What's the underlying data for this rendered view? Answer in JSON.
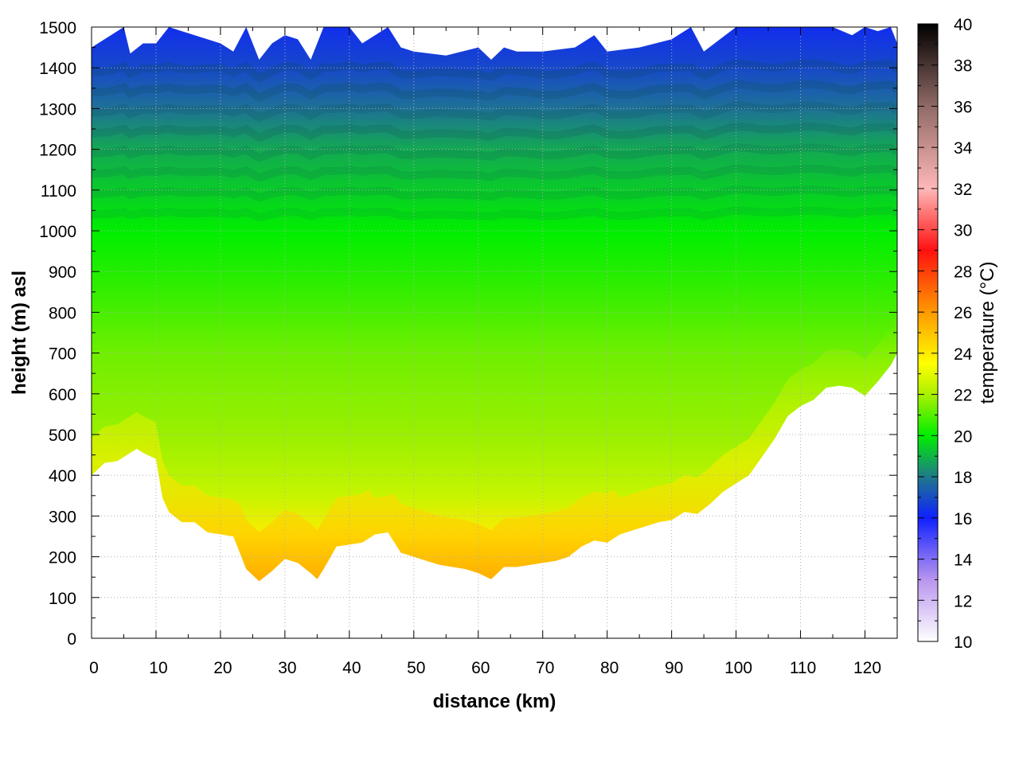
{
  "chart_data": {
    "type": "heatmap",
    "title": "",
    "xlabel": "distance (km)",
    "ylabel": "height (m) asl",
    "colorbar_label": "temperature (°C)",
    "xlim": [
      0,
      125
    ],
    "ylim": [
      0,
      1500
    ],
    "clim": [
      10,
      40
    ],
    "grid": true,
    "x_ticks": [
      0,
      10,
      20,
      30,
      40,
      50,
      60,
      70,
      80,
      90,
      100,
      110,
      120
    ],
    "y_ticks": [
      0,
      100,
      200,
      300,
      400,
      500,
      600,
      700,
      800,
      900,
      1000,
      1100,
      1200,
      1300,
      1400,
      1500
    ],
    "colorbar_ticks": [
      10,
      12,
      14,
      16,
      18,
      20,
      22,
      24,
      26,
      28,
      30,
      32,
      34,
      36,
      38,
      40
    ],
    "colormap": [
      {
        "value": 10,
        "color": "#ffffff"
      },
      {
        "value": 13,
        "color": "#b995ee"
      },
      {
        "value": 16,
        "color": "#1020ff"
      },
      {
        "value": 18,
        "color": "#1f7a8a"
      },
      {
        "value": 20,
        "color": "#00ee00"
      },
      {
        "value": 22,
        "color": "#aaf000"
      },
      {
        "value": 23.5,
        "color": "#ffff00"
      },
      {
        "value": 26,
        "color": "#ff9900"
      },
      {
        "value": 29,
        "color": "#ff1010"
      },
      {
        "value": 32,
        "color": "#ffb8b8"
      },
      {
        "value": 36,
        "color": "#906a66"
      },
      {
        "value": 40,
        "color": "#000000"
      }
    ],
    "terrain_profile": {
      "x": [
        0,
        2,
        4,
        6,
        7,
        8,
        10,
        11,
        12,
        14,
        16,
        18,
        20,
        22,
        24,
        26,
        28,
        30,
        32,
        34,
        35,
        36,
        38,
        40,
        42,
        44,
        46,
        48,
        50,
        52,
        54,
        56,
        58,
        60,
        62,
        64,
        66,
        68,
        70,
        72,
        74,
        76,
        78,
        80,
        82,
        84,
        86,
        88,
        90,
        92,
        94,
        96,
        98,
        100,
        102,
        104,
        106,
        108,
        110,
        112,
        114,
        116,
        118,
        120,
        122,
        124,
        125
      ],
      "y": [
        400,
        430,
        435,
        455,
        465,
        455,
        440,
        345,
        310,
        285,
        285,
        260,
        255,
        250,
        170,
        140,
        165,
        195,
        185,
        160,
        145,
        170,
        225,
        230,
        235,
        255,
        260,
        210,
        200,
        190,
        180,
        175,
        170,
        160,
        145,
        175,
        175,
        180,
        185,
        190,
        200,
        225,
        240,
        235,
        255,
        265,
        275,
        285,
        290,
        310,
        305,
        330,
        360,
        380,
        400,
        445,
        490,
        545,
        570,
        585,
        615,
        620,
        615,
        595,
        630,
        670,
        700
      ]
    },
    "top_boundary": {
      "x": [
        0,
        2,
        4,
        5,
        6,
        8,
        10,
        12,
        14,
        16,
        18,
        20,
        22,
        24,
        26,
        28,
        30,
        32,
        34,
        36,
        38,
        40,
        42,
        44,
        46,
        48,
        50,
        55,
        60,
        62,
        64,
        66,
        70,
        75,
        78,
        80,
        85,
        90,
        93,
        95,
        100,
        105,
        110,
        115,
        118,
        120,
        122,
        124,
        125
      ],
      "y": [
        1450,
        1470,
        1490,
        1500,
        1435,
        1460,
        1460,
        1500,
        1490,
        1480,
        1470,
        1460,
        1440,
        1500,
        1420,
        1460,
        1480,
        1470,
        1420,
        1500,
        1500,
        1500,
        1460,
        1480,
        1500,
        1450,
        1440,
        1430,
        1450,
        1420,
        1450,
        1440,
        1440,
        1450,
        1480,
        1440,
        1450,
        1470,
        1500,
        1440,
        1500,
        1500,
        1500,
        1500,
        1480,
        1500,
        1490,
        1500,
        1460
      ]
    },
    "temperature_by_height": [
      {
        "height": 150,
        "value": 25.5
      },
      {
        "height": 250,
        "value": 24.0
      },
      {
        "height": 350,
        "value": 22.5
      },
      {
        "height": 500,
        "value": 21.8
      },
      {
        "height": 700,
        "value": 21.3
      },
      {
        "height": 900,
        "value": 20.4
      },
      {
        "height": 1000,
        "value": 20.0
      },
      {
        "height": 1100,
        "value": 19.4
      },
      {
        "height": 1200,
        "value": 18.8
      },
      {
        "height": 1300,
        "value": 17.8
      },
      {
        "height": 1400,
        "value": 16.9
      },
      {
        "height": 1500,
        "value": 16.3
      }
    ]
  }
}
